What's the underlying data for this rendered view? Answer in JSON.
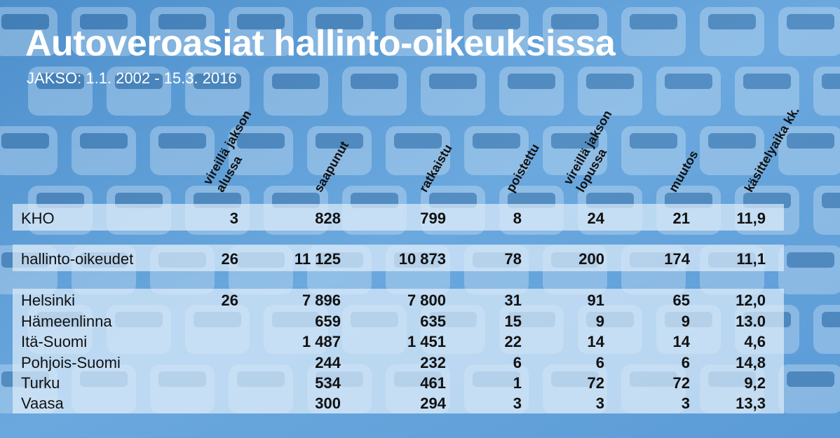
{
  "header": {
    "title": "Autoveroasiat hallinto-oikeuksissa",
    "subtitle": "JAKSO: 1.1. 2002 - 15.3. 2016"
  },
  "chart_data": {
    "type": "table",
    "columns": [
      [
        "vireillä jakson",
        "alussa"
      ],
      [
        "saapunut"
      ],
      [
        "ratkaistu"
      ],
      [
        "poistettu"
      ],
      [
        "vireillä jakson",
        "lopussa"
      ],
      [
        "muutos"
      ],
      [
        "käsittelyaika kk."
      ]
    ],
    "rows": [
      {
        "name": "KHO",
        "values": [
          "3",
          "828",
          "799",
          "8",
          "24",
          "21",
          "11,9"
        ]
      },
      {
        "name": "hallinto-oikeudet",
        "values": [
          "26",
          "11 125",
          "10 873",
          "78",
          "200",
          "174",
          "11,1"
        ]
      },
      {
        "name": "Helsinki",
        "values": [
          "26",
          "7 896",
          "7 800",
          "31",
          "91",
          "65",
          "12,0"
        ]
      },
      {
        "name": "Hämeenlinna",
        "values": [
          "",
          "659",
          "635",
          "15",
          "9",
          "9",
          "13.0"
        ]
      },
      {
        "name": "Itä-Suomi",
        "values": [
          "",
          "1 487",
          "1 451",
          "22",
          "14",
          "14",
          "4,6"
        ]
      },
      {
        "name": "Pohjois-Suomi",
        "values": [
          "",
          "244",
          "232",
          "6",
          "6",
          "6",
          "14,8"
        ]
      },
      {
        "name": "Turku",
        "values": [
          "",
          "534",
          "461",
          "1",
          "72",
          "72",
          "9,2"
        ]
      },
      {
        "name": "Vaasa",
        "values": [
          "",
          "300",
          "294",
          "3",
          "3",
          "3",
          "13,3"
        ]
      }
    ]
  }
}
